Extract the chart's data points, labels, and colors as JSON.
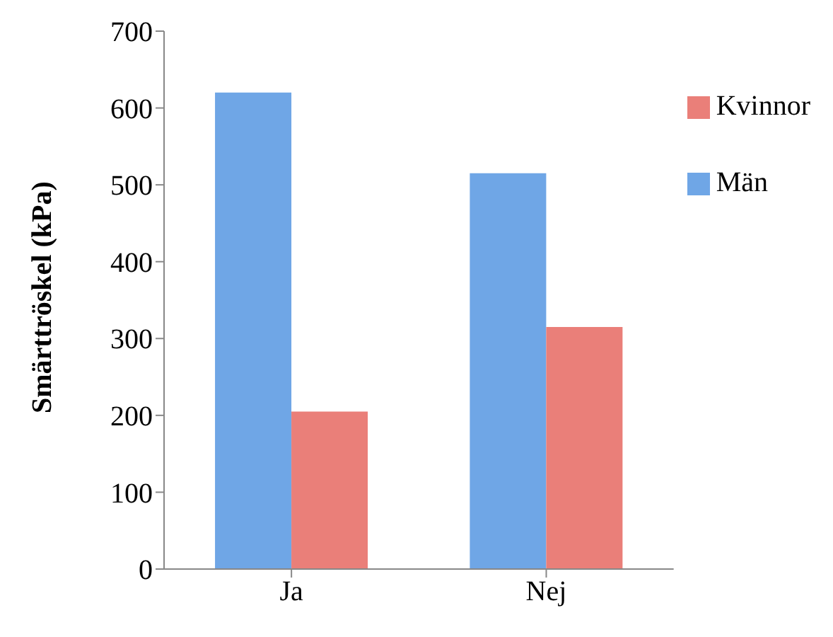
{
  "chart_data": {
    "type": "bar",
    "ylabel": "Smärttröskel (kPa)",
    "categories": [
      "Ja",
      "Nej"
    ],
    "series": [
      {
        "name": "Män",
        "color": "#6fa6e6",
        "values": [
          620,
          515
        ]
      },
      {
        "name": "Kvinnor",
        "color": "#ea7f79",
        "values": [
          205,
          315
        ]
      }
    ],
    "ylim": [
      0,
      700
    ],
    "yticks": [
      0,
      100,
      200,
      300,
      400,
      500,
      600,
      700
    ],
    "grid": false,
    "legend": "top right"
  }
}
